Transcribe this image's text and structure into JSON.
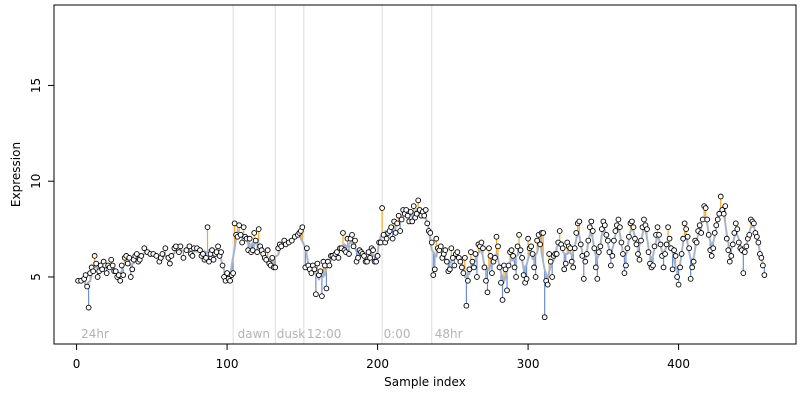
{
  "chart_data": {
    "type": "scatter",
    "xlabel": "Sample index",
    "ylabel": "Expression",
    "xlim": [
      -15,
      478
    ],
    "ylim": [
      1.5,
      19.2
    ],
    "x_ticks": [
      0,
      100,
      200,
      300,
      400
    ],
    "y_ticks": [
      5,
      10,
      15
    ],
    "grid": false,
    "colors": {
      "trend_line": "#a8b5c8",
      "residual_above": "#f5a623",
      "residual_below": "#6b8fd6",
      "point_fill": "#ffffff",
      "point_stroke": "#000000",
      "divider": "#dddddd",
      "phase_label": "#b3b3b3"
    },
    "phase_boundaries": [
      104,
      132,
      151,
      203,
      236
    ],
    "phase_labels": [
      {
        "x": 3,
        "text": "24hr"
      },
      {
        "x": 107,
        "text": "dawn"
      },
      {
        "x": 133,
        "text": "dusk"
      },
      {
        "x": 153,
        "text": "12:00"
      },
      {
        "x": 204,
        "text": "0:00"
      },
      {
        "x": 238,
        "text": "48hr"
      }
    ],
    "points": [
      [
        1,
        4.8
      ],
      [
        3,
        4.8
      ],
      [
        5,
        4.9
      ],
      [
        6,
        5.1
      ],
      [
        7,
        4.5
      ],
      [
        8,
        3.4
      ],
      [
        9,
        5.2
      ],
      [
        10,
        5.5
      ],
      [
        11,
        5.3
      ],
      [
        12,
        6.1
      ],
      [
        13,
        5.7
      ],
      [
        14,
        5.0
      ],
      [
        15,
        5.3
      ],
      [
        16,
        5.6
      ],
      [
        17,
        5.4
      ],
      [
        18,
        5.8
      ],
      [
        19,
        5.6
      ],
      [
        20,
        5.2
      ],
      [
        21,
        5.6
      ],
      [
        22,
        5.5
      ],
      [
        23,
        5.9
      ],
      [
        24,
        5.6
      ],
      [
        25,
        5.3
      ],
      [
        26,
        5.3
      ],
      [
        27,
        5.0
      ],
      [
        28,
        5.1
      ],
      [
        29,
        4.8
      ],
      [
        30,
        5.6
      ],
      [
        31,
        5.1
      ],
      [
        32,
        6.0
      ],
      [
        33,
        6.1
      ],
      [
        34,
        5.7
      ],
      [
        35,
        6.0
      ],
      [
        36,
        5.0
      ],
      [
        37,
        5.4
      ],
      [
        38,
        5.9
      ],
      [
        39,
        6.1
      ],
      [
        40,
        6.2
      ],
      [
        41,
        5.8
      ],
      [
        42,
        5.9
      ],
      [
        43,
        6.1
      ],
      [
        45,
        6.5
      ],
      [
        47,
        6.3
      ],
      [
        49,
        6.2
      ],
      [
        51,
        6.2
      ],
      [
        53,
        6.1
      ],
      [
        55,
        5.8
      ],
      [
        56,
        6.0
      ],
      [
        57,
        6.2
      ],
      [
        59,
        6.5
      ],
      [
        61,
        6.0
      ],
      [
        62,
        5.7
      ],
      [
        63,
        6.1
      ],
      [
        65,
        6.5
      ],
      [
        66,
        6.6
      ],
      [
        68,
        6.3
      ],
      [
        69,
        6.6
      ],
      [
        71,
        6.0
      ],
      [
        73,
        6.4
      ],
      [
        75,
        6.6
      ],
      [
        76,
        6.2
      ],
      [
        77,
        6.1
      ],
      [
        78,
        6.5
      ],
      [
        80,
        6.5
      ],
      [
        82,
        6.4
      ],
      [
        83,
        6.1
      ],
      [
        84,
        6.2
      ],
      [
        85,
        5.9
      ],
      [
        86,
        6.0
      ],
      [
        87,
        7.6
      ],
      [
        88,
        5.8
      ],
      [
        89,
        6.2
      ],
      [
        90,
        6.4
      ],
      [
        91,
        5.9
      ],
      [
        92,
        6.2
      ],
      [
        93,
        6.3
      ],
      [
        94,
        6.6
      ],
      [
        95,
        6.1
      ],
      [
        96,
        6.3
      ],
      [
        97,
        5.6
      ],
      [
        98,
        5.0
      ],
      [
        99,
        4.8
      ],
      [
        100,
        5.2
      ],
      [
        101,
        4.9
      ],
      [
        102,
        4.8
      ],
      [
        103,
        5.1
      ],
      [
        104,
        5.2
      ],
      [
        105,
        7.8
      ],
      [
        106,
        7.2
      ],
      [
        107,
        7.1
      ],
      [
        108,
        7.7
      ],
      [
        109,
        7.2
      ],
      [
        110,
        6.8
      ],
      [
        111,
        7.6
      ],
      [
        112,
        7.1
      ],
      [
        113,
        7.0
      ],
      [
        114,
        6.4
      ],
      [
        115,
        7.0
      ],
      [
        116,
        6.3
      ],
      [
        117,
        6.4
      ],
      [
        118,
        7.3
      ],
      [
        119,
        6.9
      ],
      [
        120,
        6.3
      ],
      [
        121,
        7.5
      ],
      [
        122,
        6.6
      ],
      [
        123,
        6.4
      ],
      [
        124,
        6.2
      ],
      [
        125,
        6.0
      ],
      [
        126,
        5.9
      ],
      [
        127,
        6.4
      ],
      [
        128,
        5.7
      ],
      [
        129,
        5.6
      ],
      [
        130,
        6.0
      ],
      [
        131,
        5.5
      ],
      [
        132,
        5.5
      ],
      [
        134,
        6.5
      ],
      [
        135,
        6.7
      ],
      [
        136,
        6.6
      ],
      [
        138,
        6.9
      ],
      [
        139,
        6.7
      ],
      [
        141,
        6.8
      ],
      [
        143,
        6.9
      ],
      [
        145,
        7.1
      ],
      [
        147,
        7.2
      ],
      [
        148,
        7.3
      ],
      [
        149,
        7.4
      ],
      [
        150,
        7.6
      ],
      [
        152,
        5.5
      ],
      [
        153,
        6.5
      ],
      [
        154,
        5.6
      ],
      [
        155,
        5.4
      ],
      [
        156,
        5.2
      ],
      [
        157,
        5.6
      ],
      [
        158,
        5.4
      ],
      [
        159,
        4.1
      ],
      [
        160,
        5.7
      ],
      [
        161,
        5.1
      ],
      [
        162,
        5.3
      ],
      [
        163,
        4.0
      ],
      [
        164,
        5.8
      ],
      [
        165,
        5.6
      ],
      [
        166,
        4.4
      ],
      [
        167,
        5.8
      ],
      [
        168,
        5.6
      ],
      [
        169,
        6.1
      ],
      [
        170,
        6.1
      ],
      [
        171,
        6.0
      ],
      [
        172,
        6.2
      ],
      [
        173,
        6.3
      ],
      [
        174,
        6.0
      ],
      [
        175,
        6.5
      ],
      [
        176,
        6.5
      ],
      [
        177,
        7.3
      ],
      [
        178,
        6.4
      ],
      [
        179,
        6.3
      ],
      [
        180,
        7.0
      ],
      [
        181,
        6.2
      ],
      [
        182,
        7.0
      ],
      [
        183,
        7.2
      ],
      [
        184,
        6.6
      ],
      [
        185,
        6.9
      ],
      [
        186,
        5.8
      ],
      [
        187,
        6.0
      ],
      [
        188,
        6.4
      ],
      [
        189,
        6.3
      ],
      [
        190,
        6.2
      ],
      [
        191,
        6.1
      ],
      [
        192,
        5.8
      ],
      [
        193,
        5.8
      ],
      [
        194,
        6.3
      ],
      [
        195,
        6.0
      ],
      [
        196,
        6.5
      ],
      [
        197,
        6.4
      ],
      [
        198,
        5.8
      ],
      [
        199,
        5.8
      ],
      [
        200,
        6.1
      ],
      [
        201,
        6.8
      ],
      [
        202,
        6.8
      ],
      [
        203,
        8.6
      ],
      [
        204,
        7.2
      ],
      [
        205,
        6.8
      ],
      [
        206,
        7.0
      ],
      [
        207,
        7.3
      ],
      [
        208,
        7.4
      ],
      [
        209,
        7.6
      ],
      [
        210,
        7.0
      ],
      [
        211,
        7.9
      ],
      [
        212,
        7.3
      ],
      [
        213,
        7.8
      ],
      [
        214,
        8.2
      ],
      [
        215,
        7.4
      ],
      [
        216,
        8.0
      ],
      [
        217,
        8.5
      ],
      [
        218,
        8.3
      ],
      [
        219,
        8.5
      ],
      [
        220,
        8.2
      ],
      [
        221,
        7.9
      ],
      [
        222,
        8.4
      ],
      [
        223,
        7.9
      ],
      [
        224,
        8.7
      ],
      [
        225,
        8.1
      ],
      [
        226,
        8.3
      ],
      [
        227,
        9.0
      ],
      [
        228,
        8.5
      ],
      [
        229,
        8.2
      ],
      [
        230,
        8.4
      ],
      [
        231,
        8.2
      ],
      [
        232,
        8.5
      ],
      [
        233,
        7.8
      ],
      [
        234,
        7.4
      ],
      [
        235,
        7.3
      ],
      [
        236,
        6.8
      ],
      [
        237,
        5.1
      ],
      [
        238,
        5.4
      ],
      [
        239,
        7.0
      ],
      [
        240,
        6.5
      ],
      [
        241,
        6.4
      ],
      [
        242,
        6.6
      ],
      [
        243,
        6.0
      ],
      [
        244,
        6.2
      ],
      [
        245,
        6.4
      ],
      [
        246,
        5.8
      ],
      [
        247,
        5.3
      ],
      [
        248,
        5.4
      ],
      [
        249,
        6.5
      ],
      [
        250,
        6.0
      ],
      [
        251,
        5.6
      ],
      [
        252,
        6.2
      ],
      [
        253,
        6.3
      ],
      [
        254,
        6.0
      ],
      [
        255,
        5.8
      ],
      [
        256,
        5.5
      ],
      [
        257,
        5.2
      ],
      [
        258,
        6.0
      ],
      [
        259,
        3.5
      ],
      [
        260,
        4.8
      ],
      [
        261,
        5.4
      ],
      [
        262,
        6.3
      ],
      [
        263,
        5.8
      ],
      [
        264,
        5.5
      ],
      [
        265,
        6.2
      ],
      [
        266,
        5.0
      ],
      [
        267,
        6.7
      ],
      [
        268,
        6.6
      ],
      [
        269,
        6.8
      ],
      [
        270,
        6.5
      ],
      [
        271,
        5.5
      ],
      [
        272,
        4.8
      ],
      [
        273,
        4.2
      ],
      [
        274,
        6.5
      ],
      [
        275,
        6.1
      ],
      [
        276,
        5.2
      ],
      [
        277,
        5.8
      ],
      [
        278,
        6.0
      ],
      [
        279,
        7.1
      ],
      [
        280,
        6.6
      ],
      [
        281,
        5.5
      ],
      [
        282,
        4.7
      ],
      [
        283,
        3.8
      ],
      [
        284,
        5.6
      ],
      [
        285,
        5.4
      ],
      [
        286,
        4.3
      ],
      [
        287,
        5.6
      ],
      [
        288,
        6.3
      ],
      [
        289,
        6.4
      ],
      [
        290,
        6.1
      ],
      [
        291,
        5.5
      ],
      [
        292,
        5.0
      ],
      [
        293,
        6.6
      ],
      [
        294,
        7.2
      ],
      [
        295,
        6.4
      ],
      [
        296,
        6.0
      ],
      [
        297,
        5.1
      ],
      [
        298,
        4.7
      ],
      [
        299,
        4.9
      ],
      [
        300,
        7.0
      ],
      [
        301,
        6.5
      ],
      [
        302,
        6.6
      ],
      [
        303,
        6.2
      ],
      [
        304,
        5.5
      ],
      [
        305,
        5.0
      ],
      [
        306,
        6.9
      ],
      [
        307,
        7.2
      ],
      [
        308,
        6.7
      ],
      [
        309,
        7.3
      ],
      [
        310,
        7.3
      ],
      [
        311,
        2.9
      ],
      [
        312,
        4.8
      ],
      [
        313,
        4.6
      ],
      [
        314,
        6.2
      ],
      [
        315,
        5.8
      ],
      [
        316,
        5.0
      ],
      [
        317,
        6.1
      ],
      [
        318,
        6.2
      ],
      [
        319,
        6.2
      ],
      [
        320,
        6.8
      ],
      [
        321,
        7.4
      ],
      [
        322,
        6.7
      ],
      [
        323,
        6.5
      ],
      [
        324,
        5.4
      ],
      [
        325,
        5.7
      ],
      [
        326,
        6.8
      ],
      [
        327,
        6.6
      ],
      [
        328,
        6.5
      ],
      [
        329,
        5.8
      ],
      [
        330,
        5.5
      ],
      [
        331,
        6.5
      ],
      [
        332,
        7.3
      ],
      [
        333,
        7.8
      ],
      [
        334,
        7.9
      ],
      [
        335,
        6.7
      ],
      [
        336,
        6.1
      ],
      [
        337,
        4.9
      ],
      [
        338,
        5.8
      ],
      [
        339,
        6.2
      ],
      [
        340,
        6.9
      ],
      [
        341,
        7.6
      ],
      [
        342,
        7.9
      ],
      [
        343,
        7.4
      ],
      [
        344,
        6.5
      ],
      [
        345,
        5.5
      ],
      [
        346,
        4.9
      ],
      [
        347,
        6.3
      ],
      [
        348,
        6.6
      ],
      [
        349,
        7.5
      ],
      [
        350,
        7.9
      ],
      [
        351,
        7.7
      ],
      [
        352,
        7.2
      ],
      [
        353,
        6.9
      ],
      [
        354,
        6.3
      ],
      [
        355,
        5.6
      ],
      [
        356,
        6.1
      ],
      [
        357,
        6.9
      ],
      [
        358,
        7.4
      ],
      [
        359,
        7.7
      ],
      [
        360,
        8.0
      ],
      [
        361,
        7.6
      ],
      [
        362,
        6.8
      ],
      [
        363,
        6.2
      ],
      [
        364,
        5.2
      ],
      [
        365,
        5.6
      ],
      [
        366,
        6.5
      ],
      [
        367,
        7.1
      ],
      [
        368,
        7.8
      ],
      [
        369,
        7.9
      ],
      [
        370,
        7.6
      ],
      [
        371,
        7.0
      ],
      [
        372,
        6.7
      ],
      [
        373,
        6.2
      ],
      [
        374,
        5.9
      ],
      [
        375,
        6.9
      ],
      [
        376,
        7.6
      ],
      [
        377,
        8.0
      ],
      [
        378,
        7.7
      ],
      [
        379,
        7.5
      ],
      [
        380,
        6.3
      ],
      [
        381,
        5.7
      ],
      [
        382,
        5.5
      ],
      [
        383,
        5.6
      ],
      [
        384,
        6.6
      ],
      [
        385,
        7.2
      ],
      [
        386,
        7.6
      ],
      [
        387,
        7.2
      ],
      [
        388,
        6.7
      ],
      [
        389,
        6.1
      ],
      [
        390,
        5.5
      ],
      [
        391,
        6.2
      ],
      [
        392,
        6.7
      ],
      [
        393,
        7.6
      ],
      [
        394,
        7.0
      ],
      [
        395,
        6.5
      ],
      [
        396,
        5.4
      ],
      [
        397,
        6.4
      ],
      [
        398,
        6.1
      ],
      [
        399,
        5.0
      ],
      [
        400,
        4.6
      ],
      [
        401,
        5.5
      ],
      [
        402,
        6.2
      ],
      [
        403,
        7.0
      ],
      [
        404,
        7.8
      ],
      [
        405,
        7.5
      ],
      [
        406,
        7.1
      ],
      [
        407,
        6.5
      ],
      [
        408,
        4.9
      ],
      [
        409,
        5.5
      ],
      [
        410,
        5.8
      ],
      [
        411,
        6.9
      ],
      [
        412,
        6.8
      ],
      [
        413,
        7.4
      ],
      [
        414,
        7.7
      ],
      [
        415,
        7.3
      ],
      [
        416,
        8.0
      ],
      [
        417,
        8.7
      ],
      [
        418,
        8.6
      ],
      [
        419,
        8.0
      ],
      [
        420,
        7.2
      ],
      [
        421,
        6.4
      ],
      [
        422,
        6.1
      ],
      [
        423,
        6.5
      ],
      [
        424,
        7.3
      ],
      [
        425,
        7.7
      ],
      [
        426,
        8.0
      ],
      [
        427,
        8.3
      ],
      [
        428,
        9.2
      ],
      [
        429,
        8.5
      ],
      [
        430,
        8.3
      ],
      [
        431,
        8.7
      ],
      [
        432,
        7.0
      ],
      [
        433,
        6.4
      ],
      [
        434,
        5.8
      ],
      [
        435,
        6.1
      ],
      [
        436,
        6.7
      ],
      [
        437,
        7.3
      ],
      [
        438,
        7.8
      ],
      [
        439,
        7.5
      ],
      [
        440,
        6.8
      ],
      [
        441,
        6.5
      ],
      [
        442,
        6.4
      ],
      [
        443,
        5.2
      ],
      [
        444,
        6.3
      ],
      [
        445,
        6.6
      ],
      [
        446,
        7.0
      ],
      [
        447,
        7.2
      ],
      [
        448,
        8.0
      ],
      [
        449,
        7.9
      ],
      [
        450,
        7.8
      ],
      [
        451,
        7.3
      ],
      [
        452,
        7.1
      ],
      [
        453,
        6.8
      ],
      [
        454,
        6.2
      ],
      [
        455,
        6.0
      ],
      [
        456,
        5.6
      ],
      [
        457,
        5.1
      ]
    ]
  }
}
